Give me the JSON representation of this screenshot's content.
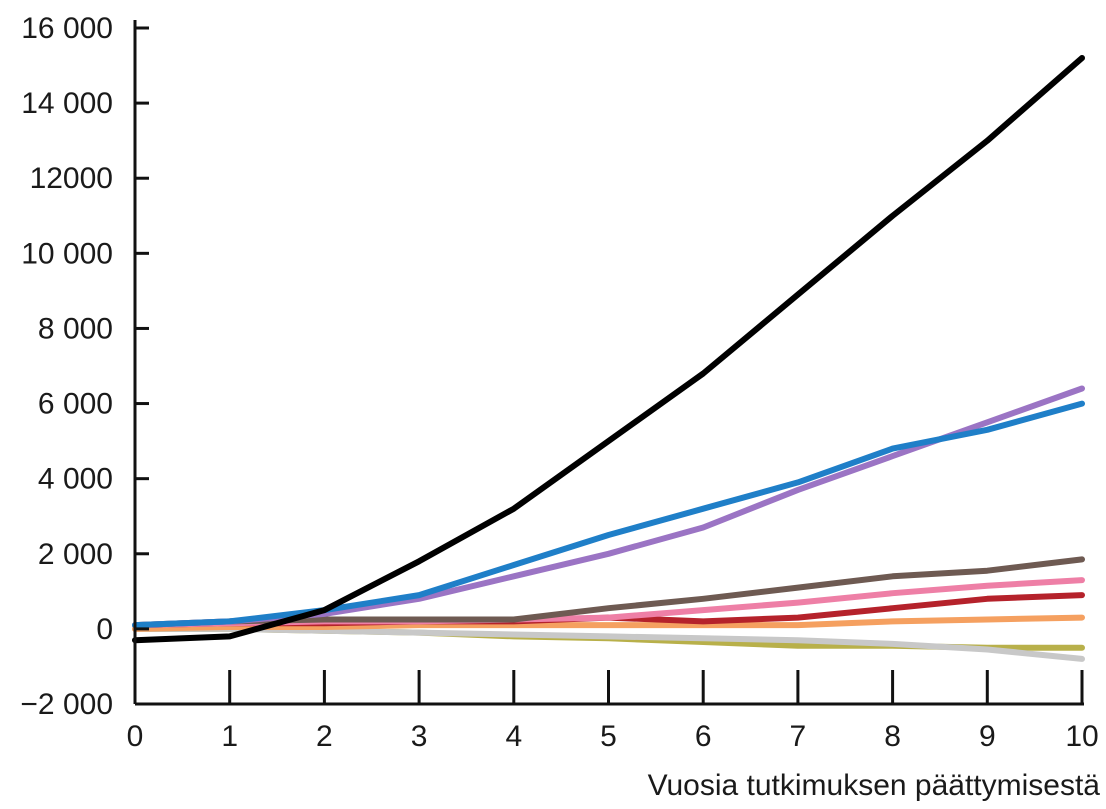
{
  "chart_data": {
    "type": "line",
    "title": "",
    "xlabel": "Vuosia tutkimuksen päättymisestä",
    "ylabel": "",
    "xlim": [
      0,
      10
    ],
    "ylim": [
      -2000,
      16000
    ],
    "x_ticks": [
      0,
      1,
      2,
      3,
      4,
      5,
      6,
      7,
      8,
      9,
      10
    ],
    "x_tick_labels": [
      "0",
      "1",
      "2",
      "3",
      "4",
      "5",
      "6",
      "7",
      "8",
      "9",
      "10"
    ],
    "y_ticks": [
      -2000,
      0,
      2000,
      4000,
      6000,
      8000,
      10000,
      12000,
      14000,
      16000
    ],
    "y_tick_labels": [
      "−2 000",
      "0",
      "2 000",
      "4 000",
      "6 000",
      "8 000",
      "10 000",
      "12000",
      "14 000",
      "16 000"
    ],
    "grid": false,
    "legend": "none",
    "x": [
      0,
      1,
      2,
      3,
      4,
      5,
      6,
      7,
      8,
      9,
      10
    ],
    "series": [
      {
        "color": "#000000",
        "values": [
          -300,
          -200,
          500,
          1800,
          3200,
          5000,
          6800,
          8900,
          11000,
          13000,
          15200
        ]
      },
      {
        "color": "#1f7fc8",
        "values": [
          100,
          200,
          500,
          900,
          1700,
          2500,
          3200,
          3900,
          4800,
          5300,
          6000
        ]
      },
      {
        "color": "#9b74c4",
        "values": [
          100,
          200,
          400,
          800,
          1400,
          2000,
          2700,
          3700,
          4600,
          5500,
          6400
        ]
      },
      {
        "color": "#6e5a52",
        "values": [
          100,
          200,
          250,
          250,
          250,
          550,
          800,
          1100,
          1400,
          1550,
          1850
        ]
      },
      {
        "color": "#ee7fa6",
        "values": [
          100,
          150,
          200,
          200,
          250,
          300,
          500,
          700,
          950,
          1150,
          1300
        ]
      },
      {
        "color": "#b5222b",
        "values": [
          100,
          150,
          150,
          200,
          200,
          300,
          200,
          300,
          550,
          800,
          900
        ]
      },
      {
        "color": "#f5a060",
        "values": [
          0,
          50,
          50,
          100,
          100,
          100,
          100,
          100,
          200,
          250,
          300
        ]
      },
      {
        "color": "#c8c8c8",
        "values": [
          0,
          0,
          -50,
          -100,
          -150,
          -200,
          -250,
          -300,
          -400,
          -550,
          -800
        ]
      },
      {
        "color": "#b8b04a",
        "values": [
          0,
          0,
          -50,
          -100,
          -200,
          -250,
          -350,
          -450,
          -450,
          -500,
          -500
        ]
      }
    ]
  }
}
